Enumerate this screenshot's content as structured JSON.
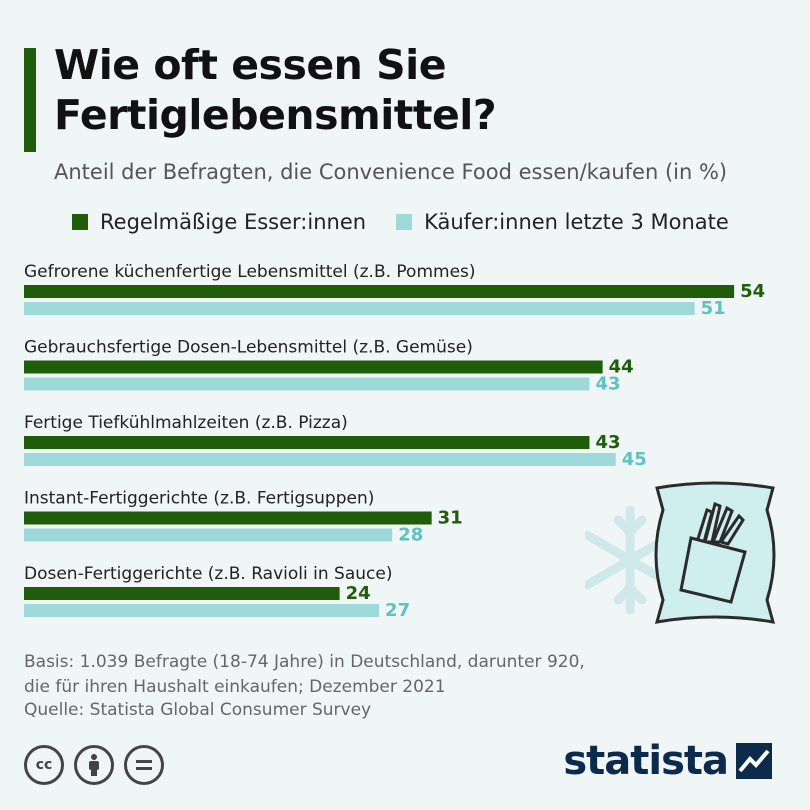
{
  "title": "Wie oft essen Sie Fertiglebensmittel?",
  "subtitle": "Anteil der Befragten, die Convenience Food essen/kaufen (in %)",
  "legend": {
    "regular": "Regelmäßige Esser:innen",
    "buyers": "Käufer:innen letzte 3 Monate"
  },
  "colors": {
    "regular": "#1f5d0a",
    "buyers": "#9ed9d9",
    "buyers_label": "#5ec2c2"
  },
  "chart_data": {
    "type": "bar",
    "orientation": "horizontal",
    "title": "Wie oft essen Sie Fertiglebensmittel?",
    "subtitle": "Anteil der Befragten, die Convenience Food essen/kaufen (in %)",
    "categories": [
      "Gefrorene küchenfertige Lebensmittel (z.B. Pommes)",
      "Gebrauchsfertige Dosen-Lebensmittel (z.B. Gemüse)",
      "Fertige Tiefkühlmahlzeiten (z.B. Pizza)",
      "Instant-Fertiggerichte (z.B. Fertigsuppen)",
      "Dosen-Fertiggerichte (z.B. Ravioli in Sauce)"
    ],
    "series": [
      {
        "name": "Regelmäßige Esser:innen",
        "values": [
          54,
          44,
          43,
          31,
          24
        ]
      },
      {
        "name": "Käufer:innen letzte 3 Monate",
        "values": [
          51,
          43,
          45,
          28,
          27
        ]
      }
    ],
    "xlim": [
      0,
      60
    ],
    "legend_position": "top",
    "grid": false
  },
  "footnote": {
    "line1": "Basis: 1.039 Befragte (18-74 Jahre) in Deutschland, darunter 920,",
    "line2": "die für ihren Haushalt einkaufen; Dezember 2021",
    "source": "Quelle: Statista Global Consumer Survey"
  },
  "license_icons": [
    "cc-icon",
    "by-icon",
    "nd-icon"
  ],
  "brand": "statista"
}
